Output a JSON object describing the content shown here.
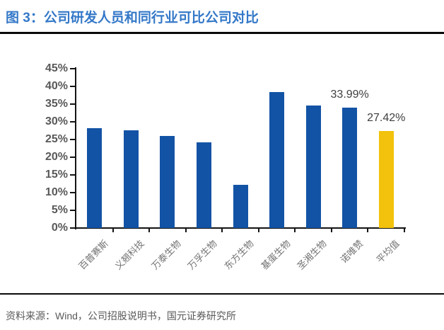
{
  "header": {
    "title": "图 3：公司研发人员和同行业可比公司对比"
  },
  "colors": {
    "title": "#3478C8",
    "bar": "#1353A5",
    "highlight": "#F2C20C",
    "rule": "#0a0a0a",
    "axis_text": "#595959",
    "tick_text": "#737373",
    "label_text": "#3F3F3F",
    "source_text": "#595959"
  },
  "chart_data": {
    "type": "bar",
    "title": "图 3：公司研发人员和同行业可比公司对比",
    "categories": [
      "百普赛斯",
      "义翘科技",
      "万泰生物",
      "万孚生物",
      "东方生物",
      "基蛋生物",
      "圣湘生物",
      "诺唯赞",
      "平均值"
    ],
    "values": [
      28.2,
      27.6,
      26.0,
      24.2,
      12.2,
      38.4,
      34.6,
      33.99,
      27.42
    ],
    "unit": "%",
    "bar_colors": [
      "#1353A5",
      "#1353A5",
      "#1353A5",
      "#1353A5",
      "#1353A5",
      "#1353A5",
      "#1353A5",
      "#1353A5",
      "#F2C20C"
    ],
    "data_labels": [
      null,
      null,
      null,
      null,
      null,
      null,
      null,
      "33.99%",
      "27.42%"
    ],
    "xlabel": "",
    "ylabel": "",
    "ylim": [
      0,
      45
    ],
    "ytick_step": 5,
    "yticks": [
      "0%",
      "5%",
      "10%",
      "15%",
      "20%",
      "25%",
      "30%",
      "35%",
      "40%",
      "45%"
    ],
    "grid": false,
    "legend": null,
    "x_tick_marks": "category-boundaries",
    "x_label_rotation_deg": 45
  },
  "footer": {
    "source": "资料来源：Wind，公司招股说明书，国元证券研究所"
  }
}
